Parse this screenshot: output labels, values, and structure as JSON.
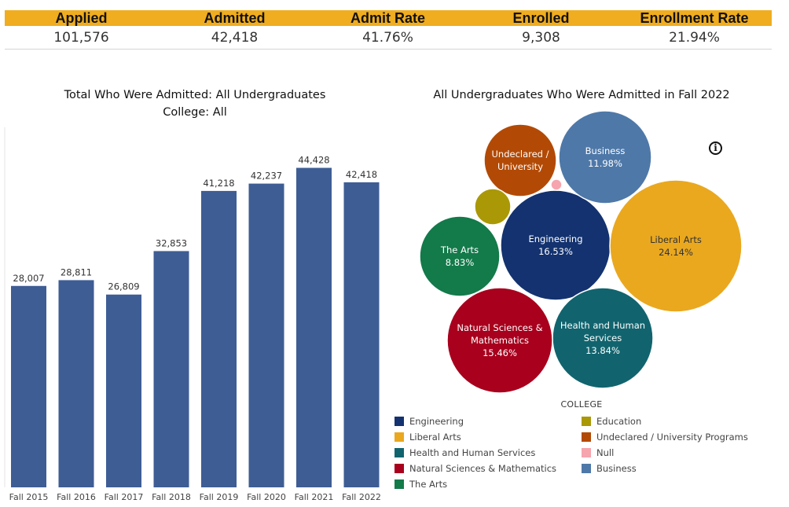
{
  "kpis": [
    {
      "label": "Applied",
      "value": "101,576"
    },
    {
      "label": "Admitted",
      "value": "42,418"
    },
    {
      "label": "Admit Rate",
      "value": "41.76%"
    },
    {
      "label": "Enrolled",
      "value": "9,308"
    },
    {
      "label": "Enrollment Rate",
      "value": "21.94%"
    }
  ],
  "chart_data": [
    {
      "type": "bar",
      "title": "Total Who Were Admitted: All Undergraduates",
      "subtitle": "College: All",
      "categories": [
        "Fall 2015",
        "Fall 2016",
        "Fall 2017",
        "Fall 2018",
        "Fall 2019",
        "Fall 2020",
        "Fall 2021",
        "Fall 2022"
      ],
      "values": [
        28007,
        28811,
        26809,
        32853,
        41218,
        42237,
        44428,
        42418
      ],
      "value_labels": [
        "28,007",
        "28,811",
        "26,809",
        "32,853",
        "41,218",
        "42,237",
        "44,428",
        "42,418"
      ],
      "ylim": [
        0,
        47000
      ],
      "color": "#3e5d94",
      "grid": false
    },
    {
      "type": "bubble",
      "title": "All Undergraduates Who Were Admitted  in Fall 2022",
      "legend_title": "COLLEGE",
      "legend_placement": "bottom",
      "bubbles": [
        {
          "name": "Engineering",
          "label": [
            "Engineering"
          ],
          "pct": "16.53%",
          "value": 16.53,
          "color": "#13326f",
          "text_color": "#ffffff"
        },
        {
          "name": "Liberal Arts",
          "label": [
            "Liberal Arts"
          ],
          "pct": "24.14%",
          "value": 24.14,
          "color": "#eaa81f",
          "text_color": "#333333"
        },
        {
          "name": "Health and Human Services",
          "label": [
            "Health and Human",
            "Services"
          ],
          "pct": "13.84%",
          "value": 13.84,
          "color": "#11646e",
          "text_color": "#ffffff"
        },
        {
          "name": "Natural Sciences & Mathematics",
          "label": [
            "Natural Sciences &",
            "Mathematics"
          ],
          "pct": "15.46%",
          "value": 15.46,
          "color": "#a8001d",
          "text_color": "#ffffff"
        },
        {
          "name": "The Arts",
          "label": [
            "The Arts"
          ],
          "pct": "8.83%",
          "value": 8.83,
          "color": "#137a4a",
          "text_color": "#ffffff"
        },
        {
          "name": "Business",
          "label": [
            "Business"
          ],
          "pct": "11.98%",
          "value": 11.98,
          "color": "#4e78a8",
          "text_color": "#ffffff"
        },
        {
          "name": "Undeclared / University Programs",
          "label": [
            "Undeclared /",
            "University"
          ],
          "pct": "",
          "value": 6.5,
          "color": "#b24a06",
          "text_color": "#ffffff"
        },
        {
          "name": "Education",
          "label": [],
          "pct": "",
          "value": 1.9,
          "color": "#aa9806",
          "text_color": "#ffffff"
        },
        {
          "name": "Null",
          "label": [],
          "pct": "",
          "value": 0.2,
          "color": "#f6a4ad",
          "text_color": "#ffffff"
        }
      ],
      "legend": [
        {
          "name": "Engineering",
          "color": "#13326f"
        },
        {
          "name": "Education",
          "color": "#aa9806"
        },
        {
          "name": "Liberal Arts",
          "color": "#eaa81f"
        },
        {
          "name": "Undeclared / University Programs",
          "color": "#b24a06"
        },
        {
          "name": "Health and Human Services",
          "color": "#11646e"
        },
        {
          "name": "Null",
          "color": "#f6a4ad"
        },
        {
          "name": "Natural Sciences & Mathematics",
          "color": "#a8001d"
        },
        {
          "name": "Business",
          "color": "#4e78a8"
        },
        {
          "name": "The Arts",
          "color": "#137a4a"
        }
      ]
    }
  ]
}
